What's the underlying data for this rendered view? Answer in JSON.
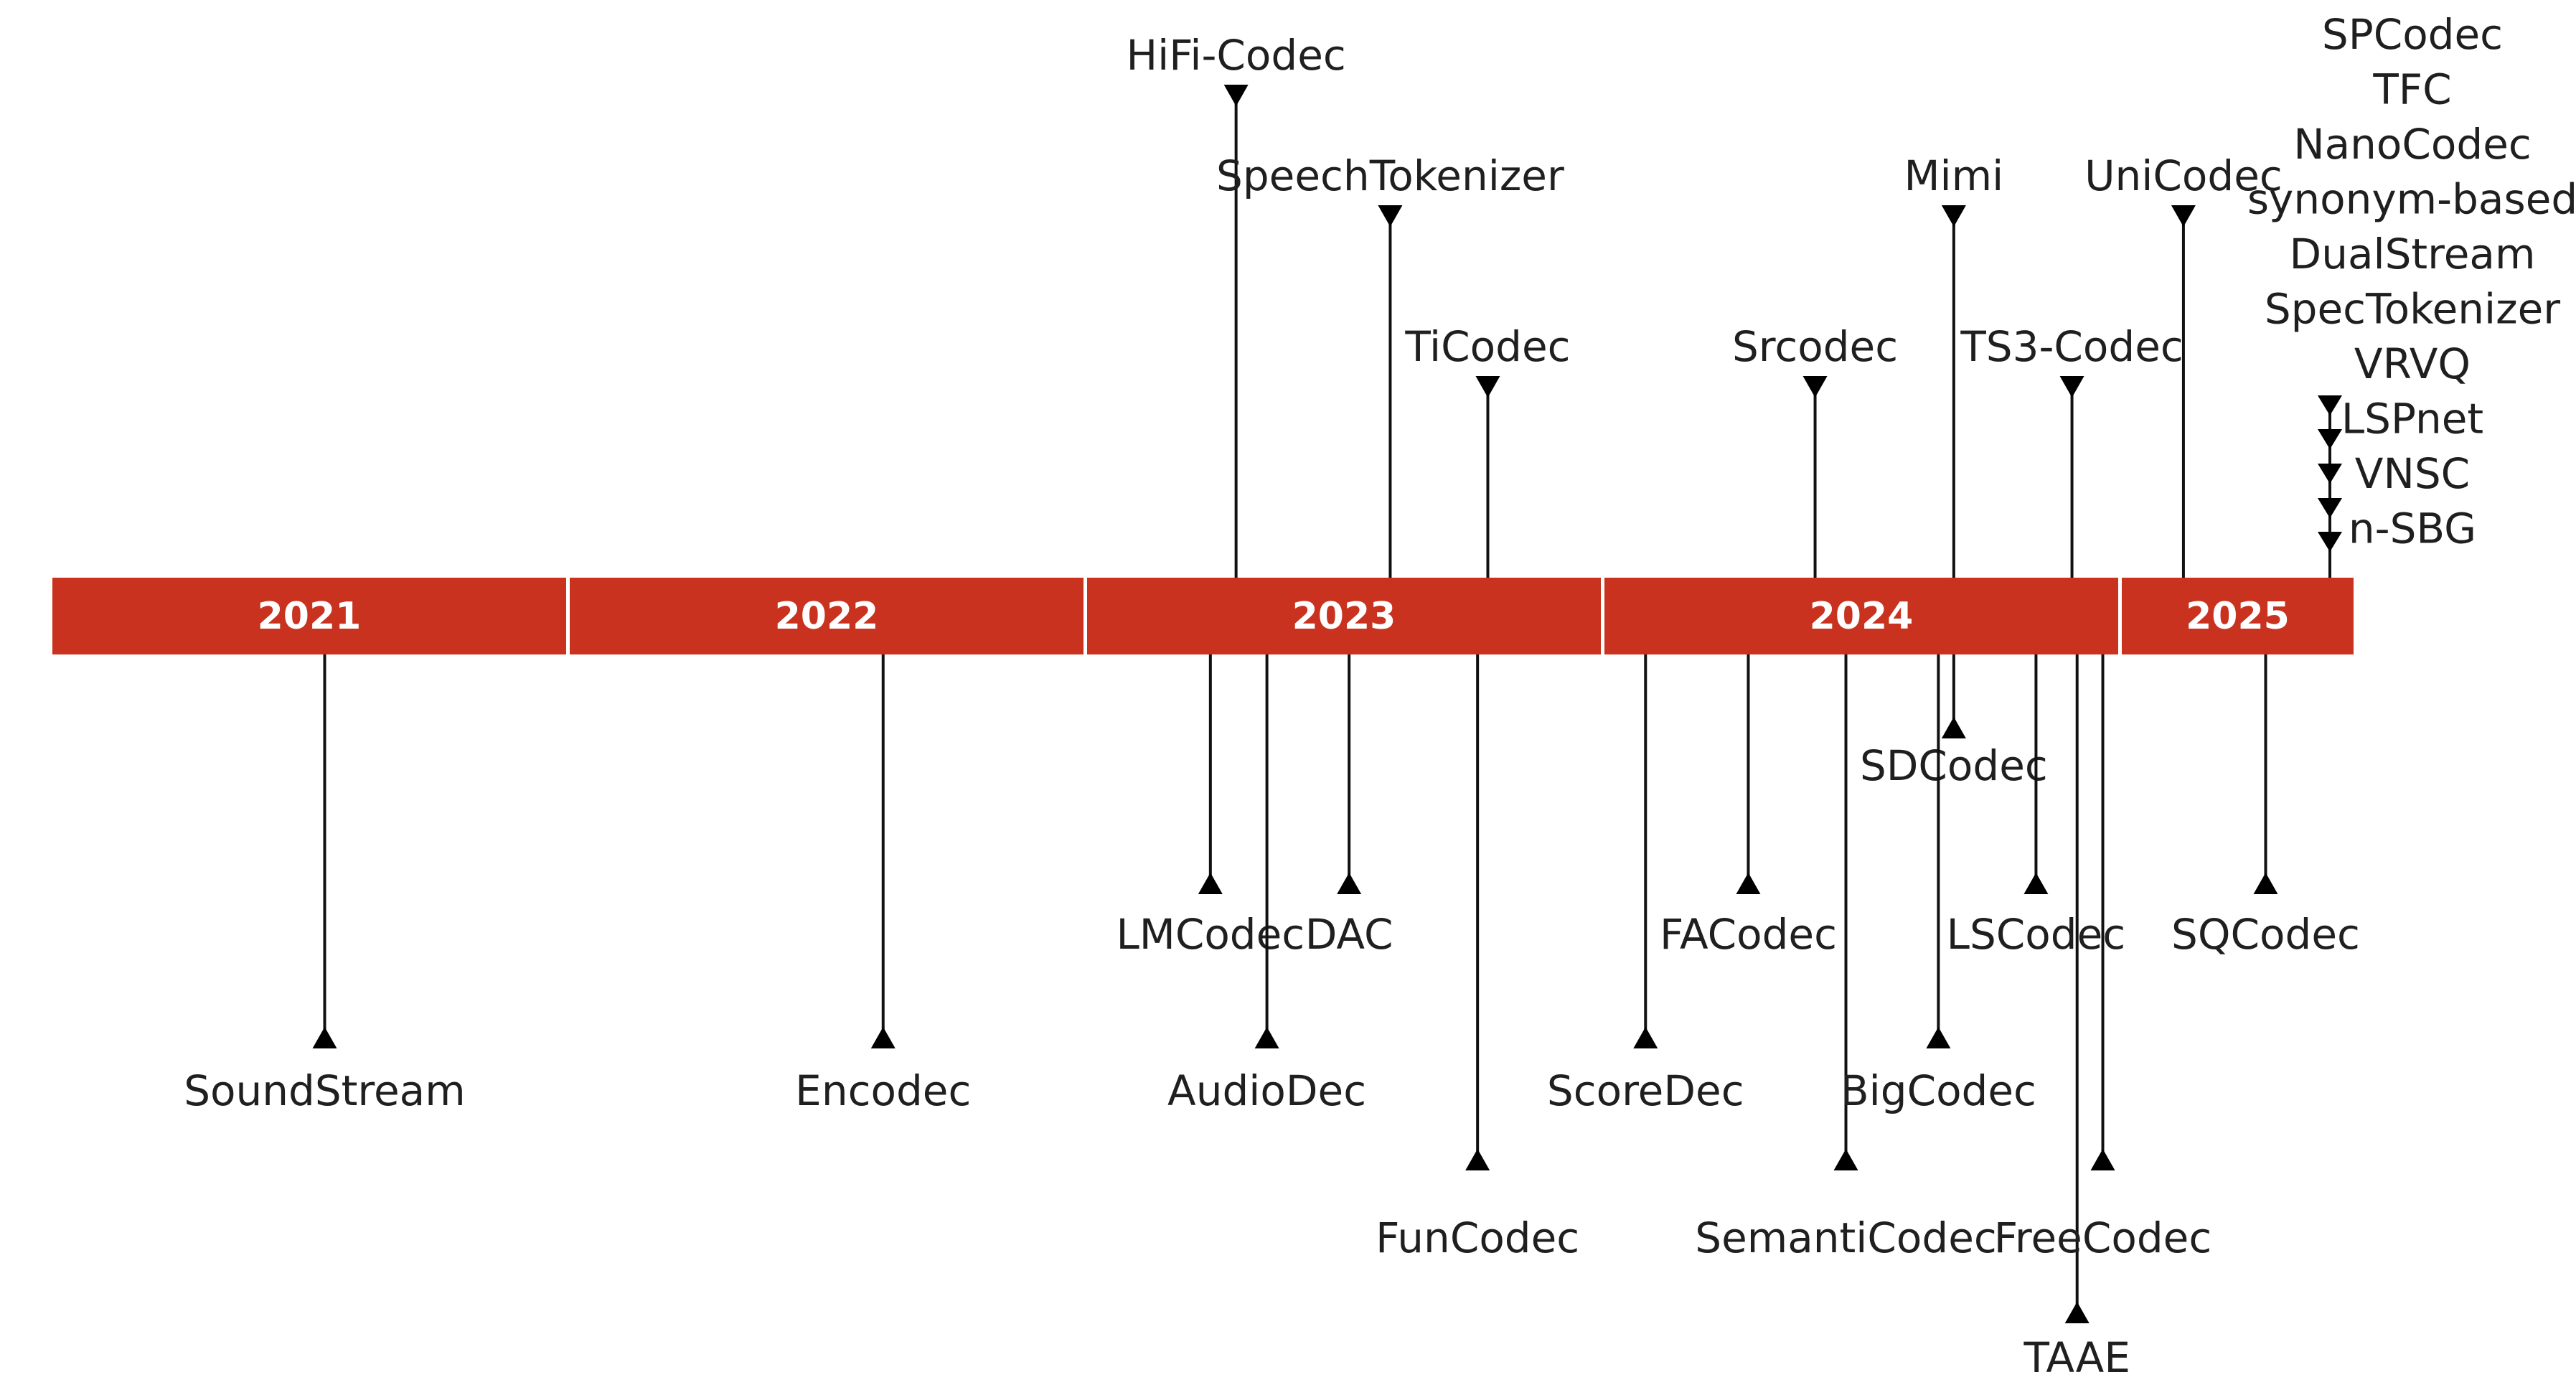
{
  "colors": {
    "bar": "#c8321e",
    "line": "#111111",
    "text": "#1f1f1f"
  },
  "years": [
    "2021",
    "2022",
    "2023",
    "2024",
    "2025"
  ],
  "milestones": [
    {
      "name": "SoundStream",
      "year": 2021.53,
      "side": "below",
      "level": 3
    },
    {
      "name": "Encodec",
      "year": 2022.61,
      "side": "below",
      "level": 3
    },
    {
      "name": "HiFi-Codec",
      "year": 2023.29,
      "side": "above",
      "level": 4
    },
    {
      "name": "LMCodec",
      "year": 2023.24,
      "side": "below",
      "level": 2
    },
    {
      "name": "AudioDec",
      "year": 2023.35,
      "side": "below",
      "level": 3
    },
    {
      "name": "SpeechTokenizer",
      "year": 2023.59,
      "side": "above",
      "level": 3
    },
    {
      "name": "DAC",
      "year": 2023.51,
      "side": "below",
      "level": 2
    },
    {
      "name": "TiCodec",
      "year": 2023.78,
      "side": "above",
      "level": 2
    },
    {
      "name": "FunCodec",
      "year": 2023.76,
      "side": "below",
      "level": 4
    },
    {
      "name": "ScoreDec",
      "year": 2024.08,
      "side": "below",
      "level": 3
    },
    {
      "name": "FACodec",
      "year": 2024.28,
      "side": "below",
      "level": 2
    },
    {
      "name": "Srcodec",
      "year": 2024.41,
      "side": "above",
      "level": 2
    },
    {
      "name": "SemantiCodec",
      "year": 2024.47,
      "side": "below",
      "level": 4
    },
    {
      "name": "Mimi",
      "year": 2024.68,
      "side": "above",
      "level": 3
    },
    {
      "name": "SDCodec",
      "year": 2024.68,
      "side": "below",
      "level": 1
    },
    {
      "name": "BigCodec",
      "year": 2024.65,
      "side": "below",
      "level": 3
    },
    {
      "name": "LSCodec",
      "year": 2024.84,
      "side": "below",
      "level": 2
    },
    {
      "name": "TS3-Codec",
      "year": 2024.91,
      "side": "above",
      "level": 2
    },
    {
      "name": "TAAE",
      "year": 2024.92,
      "side": "below",
      "level": 5
    },
    {
      "name": "FreeCodec",
      "year": 2024.97,
      "side": "below",
      "level": 4
    },
    {
      "name": "UniCodec",
      "year": 2025.12,
      "side": "above",
      "level": 3
    },
    {
      "name": "SQCodec",
      "year": 2025.28,
      "side": "below",
      "level": 2
    }
  ],
  "cluster_2025": [
    "SPCodec",
    "TFC",
    "NanoCodec",
    "synonym-based",
    "DualStream",
    "SpecTokenizer",
    "VRVQ",
    "LSPnet",
    "VNSC",
    "n-SBG"
  ]
}
